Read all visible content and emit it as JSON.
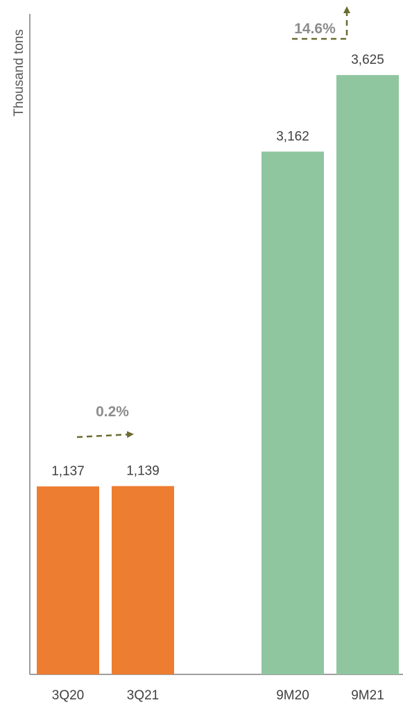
{
  "chart_data": {
    "type": "bar",
    "title": "",
    "xlabel": "",
    "ylabel": "Thousand tons",
    "ylim": [
      0,
      3800
    ],
    "grid": false,
    "categories": [
      "3Q20",
      "3Q21",
      "9M20",
      "9M21"
    ],
    "values": [
      1137,
      1139,
      3162,
      3625
    ],
    "value_labels": [
      "1,137",
      "1,139",
      "3,162",
      "3,625"
    ],
    "bar_colors": [
      "#ED7D31",
      "#ED7D31",
      "#8FC6A0",
      "#8FC6A0"
    ],
    "annotations": [
      {
        "text": "0.2%",
        "from": "3Q20",
        "to": "3Q21",
        "kind": "dashed-arrow-right"
      },
      {
        "text": "14.6%",
        "from": "9M20",
        "to": "9M21",
        "kind": "dashed-arrow-up"
      }
    ],
    "colors": {
      "axis": "#7f7f7f",
      "arrow": "#6b6b2f"
    }
  }
}
